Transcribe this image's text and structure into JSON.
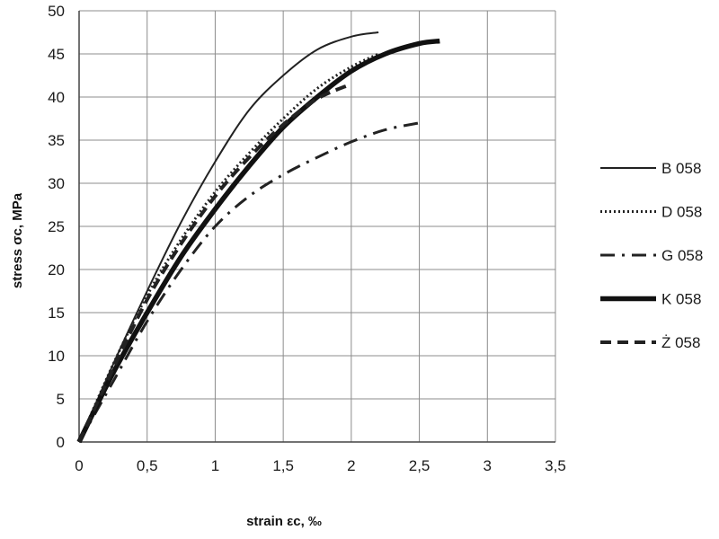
{
  "chart_data": {
    "type": "line",
    "xlabel": "strain  εc, ‰",
    "ylabel": "stress  σc, MPa",
    "xlim": [
      0,
      3.5
    ],
    "ylim": [
      0,
      50
    ],
    "xticks": [
      "0",
      "0,5",
      "1",
      "1,5",
      "2",
      "2,5",
      "3",
      "3,5"
    ],
    "yticks": [
      "0",
      "5",
      "10",
      "15",
      "20",
      "25",
      "30",
      "35",
      "40",
      "45",
      "50"
    ],
    "grid": true,
    "legend_position": "right",
    "series": [
      {
        "name": "B 058",
        "style": "solid-thin",
        "color": "#222222",
        "x": [
          0,
          0.25,
          0.5,
          0.75,
          1.0,
          1.25,
          1.5,
          1.75,
          2.0,
          2.2
        ],
        "y": [
          0,
          9.0,
          17.5,
          25.5,
          32.5,
          38.5,
          42.5,
          45.5,
          47.0,
          47.5
        ]
      },
      {
        "name": "D 058",
        "style": "dotted",
        "color": "#222222",
        "x": [
          0,
          0.25,
          0.5,
          0.75,
          1.0,
          1.25,
          1.5,
          1.75,
          2.0,
          2.2
        ],
        "y": [
          0,
          9.0,
          17.0,
          23.5,
          29.0,
          33.5,
          37.5,
          41.0,
          43.5,
          45.0
        ]
      },
      {
        "name": "G 058",
        "style": "dash-dot",
        "color": "#222222",
        "x": [
          0,
          0.25,
          0.5,
          0.75,
          1.0,
          1.25,
          1.5,
          1.75,
          2.0,
          2.25,
          2.5
        ],
        "y": [
          0,
          7.0,
          14.0,
          20.0,
          25.0,
          28.5,
          31.0,
          33.0,
          34.8,
          36.2,
          37.0
        ]
      },
      {
        "name": "K 058",
        "style": "solid-thick",
        "color": "#111111",
        "x": [
          0,
          0.25,
          0.5,
          0.75,
          1.0,
          1.25,
          1.5,
          1.75,
          2.0,
          2.25,
          2.5,
          2.65
        ],
        "y": [
          0,
          8.0,
          15.0,
          21.5,
          27.0,
          32.0,
          36.5,
          40.0,
          43.0,
          45.0,
          46.2,
          46.5
        ]
      },
      {
        "name": "Ż 058",
        "style": "dashed",
        "color": "#222222",
        "x": [
          0,
          0.25,
          0.5,
          0.75,
          1.0,
          1.25,
          1.5,
          1.75,
          2.0
        ],
        "y": [
          0,
          8.5,
          16.5,
          23.0,
          28.5,
          33.0,
          36.8,
          39.8,
          41.5
        ]
      }
    ]
  }
}
